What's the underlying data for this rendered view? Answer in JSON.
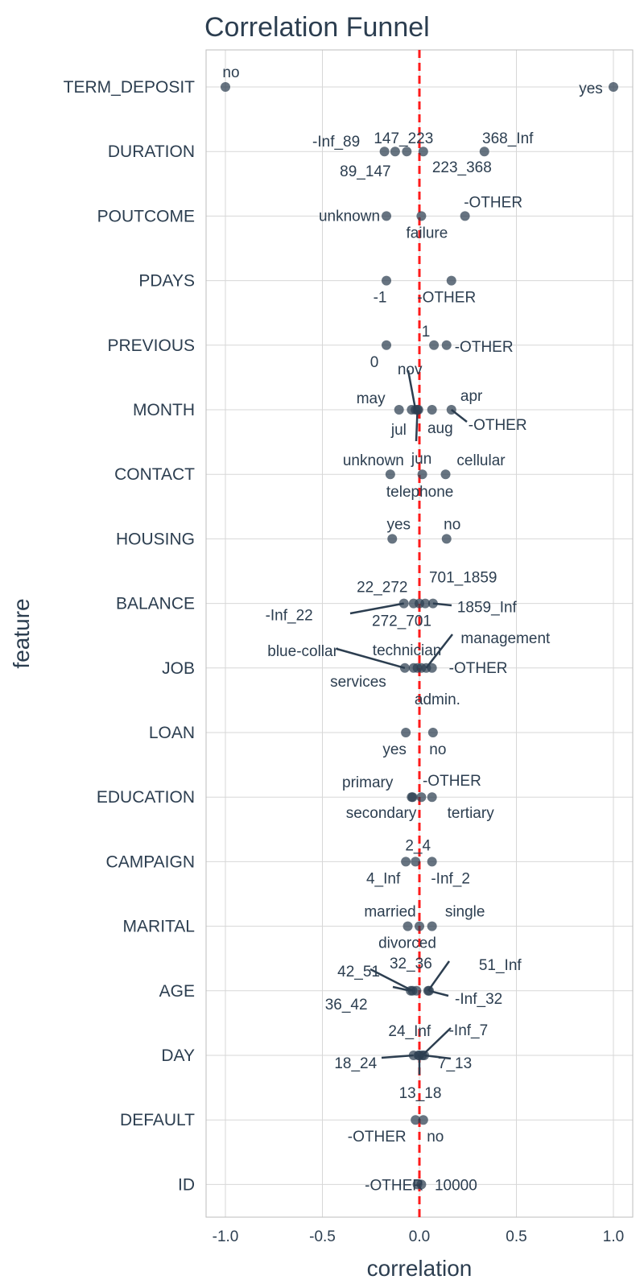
{
  "chart_data": {
    "type": "scatter",
    "title": "Correlation Funnel",
    "xlabel": "correlation",
    "ylabel": "feature",
    "xlim": [
      -1.1,
      1.1
    ],
    "xticks": [
      -1.0,
      -0.5,
      0.0,
      0.5,
      1.0
    ],
    "xtick_labels": [
      "-1.0",
      "-0.5",
      "0.0",
      "0.5",
      "1.0"
    ],
    "reference_line": 0.0,
    "features": [
      {
        "feature": "TERM_DEPOSIT",
        "points": [
          {
            "label": "no",
            "value": -1.0
          },
          {
            "label": "yes",
            "value": 1.0
          }
        ]
      },
      {
        "feature": "DURATION",
        "points": [
          {
            "label": "-Inf_89",
            "value": -0.18
          },
          {
            "label": "89_147",
            "value": -0.125
          },
          {
            "label": "147_223",
            "value": -0.065
          },
          {
            "label": "223_368",
            "value": 0.02
          },
          {
            "label": "368_Inf",
            "value": 0.335
          }
        ]
      },
      {
        "feature": "POUTCOME",
        "points": [
          {
            "label": "unknown",
            "value": -0.17
          },
          {
            "label": "failure",
            "value": 0.01
          },
          {
            "label": "-OTHER",
            "value": 0.235
          }
        ]
      },
      {
        "feature": "PDAYS",
        "points": [
          {
            "label": "-1",
            "value": -0.17
          },
          {
            "label": "-OTHER",
            "value": 0.165
          }
        ]
      },
      {
        "feature": "PREVIOUS",
        "points": [
          {
            "label": "0",
            "value": -0.17
          },
          {
            "label": "1",
            "value": 0.075
          },
          {
            "label": "-OTHER",
            "value": 0.14
          }
        ]
      },
      {
        "feature": "MONTH",
        "points": [
          {
            "label": "may",
            "value": -0.105
          },
          {
            "label": "jul",
            "value": -0.04
          },
          {
            "label": "nov",
            "value": -0.02
          },
          {
            "label": "jun",
            "value": -0.01
          },
          {
            "label": "aug",
            "value": -0.005
          },
          {
            "label": "apr",
            "value": 0.065
          },
          {
            "label": "-OTHER",
            "value": 0.165
          }
        ]
      },
      {
        "feature": "CONTACT",
        "points": [
          {
            "label": "unknown",
            "value": -0.15
          },
          {
            "label": "telephone",
            "value": 0.015
          },
          {
            "label": "cellular",
            "value": 0.135
          }
        ]
      },
      {
        "feature": "HOUSING",
        "points": [
          {
            "label": "yes",
            "value": -0.14
          },
          {
            "label": "no",
            "value": 0.14
          }
        ]
      },
      {
        "feature": "BALANCE",
        "points": [
          {
            "label": "-Inf_22",
            "value": -0.08
          },
          {
            "label": "22_272",
            "value": -0.03
          },
          {
            "label": "272_701",
            "value": 0.0
          },
          {
            "label": "701_1859",
            "value": 0.03
          },
          {
            "label": "1859_Inf",
            "value": 0.07
          }
        ]
      },
      {
        "feature": "JOB",
        "points": [
          {
            "label": "blue-collar",
            "value": -0.075
          },
          {
            "label": "services",
            "value": -0.03
          },
          {
            "label": "technician",
            "value": -0.01
          },
          {
            "label": "admin.",
            "value": 0.01
          },
          {
            "label": "management",
            "value": 0.035
          },
          {
            "label": "-OTHER",
            "value": 0.065
          }
        ]
      },
      {
        "feature": "LOAN",
        "points": [
          {
            "label": "yes",
            "value": -0.07
          },
          {
            "label": "no",
            "value": 0.07
          }
        ]
      },
      {
        "feature": "EDUCATION",
        "points": [
          {
            "label": "primary",
            "value": -0.04
          },
          {
            "label": "secondary",
            "value": -0.035
          },
          {
            "label": "-OTHER",
            "value": 0.01
          },
          {
            "label": "tertiary",
            "value": 0.065
          }
        ]
      },
      {
        "feature": "CAMPAIGN",
        "points": [
          {
            "label": "4_Inf",
            "value": -0.07
          },
          {
            "label": "2_4",
            "value": -0.02
          },
          {
            "label": "-Inf_2",
            "value": 0.065
          }
        ]
      },
      {
        "feature": "MARITAL",
        "points": [
          {
            "label": "married",
            "value": -0.06
          },
          {
            "label": "divorced",
            "value": 0.0
          },
          {
            "label": "single",
            "value": 0.065
          }
        ]
      },
      {
        "feature": "AGE",
        "points": [
          {
            "label": "36_42",
            "value": -0.045
          },
          {
            "label": "42_51",
            "value": -0.035
          },
          {
            "label": "32_36",
            "value": -0.015
          },
          {
            "label": "51_Inf",
            "value": 0.045
          },
          {
            "label": "-Inf_32",
            "value": 0.05
          }
        ]
      },
      {
        "feature": "DAY",
        "points": [
          {
            "label": "18_24",
            "value": -0.03
          },
          {
            "label": "24_Inf",
            "value": -0.005
          },
          {
            "label": "13_18",
            "value": 0.0
          },
          {
            "label": "-Inf_7",
            "value": 0.015
          },
          {
            "label": "7_13",
            "value": 0.025
          }
        ]
      },
      {
        "feature": "DEFAULT",
        "points": [
          {
            "label": "-OTHER",
            "value": -0.02
          },
          {
            "label": "no",
            "value": 0.02
          }
        ]
      },
      {
        "feature": "ID",
        "points": [
          {
            "label": "-OTHER",
            "value": -0.01
          },
          {
            "label": "10000",
            "value": 0.01
          }
        ]
      }
    ]
  }
}
